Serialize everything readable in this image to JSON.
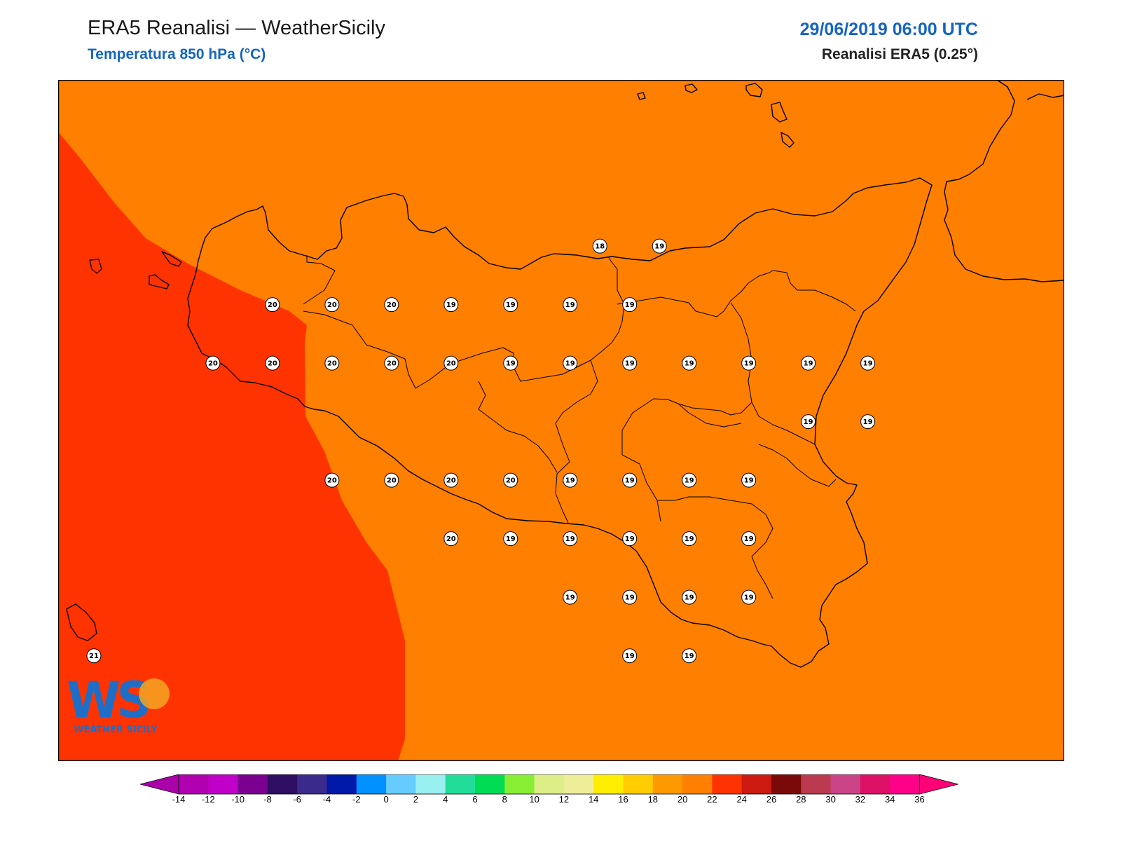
{
  "header": {
    "title": "ERA5 Reanalisi — WeatherSicily",
    "subtitle": "Temperatura 850 hPa (°C)",
    "datetime": "29/06/2019 06:00 UTC",
    "source": "Reanalisi ERA5 (0.25°)"
  },
  "logo": {
    "text": "WS",
    "caption": "WEATHER SICILY"
  },
  "map": {
    "field_colors": {
      "18-20": "#ff7f00",
      "20-22": "#ff3300"
    },
    "stations": [
      {
        "lon": 15.25,
        "lat": 38.25,
        "t": "18"
      },
      {
        "lon": 15.75,
        "lat": 38.25,
        "t": "19"
      },
      {
        "lon": 12.5,
        "lat": 38.0,
        "t": "20"
      },
      {
        "lon": 13.0,
        "lat": 38.0,
        "t": "20"
      },
      {
        "lon": 13.5,
        "lat": 38.0,
        "t": "20"
      },
      {
        "lon": 14.0,
        "lat": 38.0,
        "t": "19"
      },
      {
        "lon": 14.5,
        "lat": 38.0,
        "t": "19"
      },
      {
        "lon": 15.0,
        "lat": 38.0,
        "t": "19"
      },
      {
        "lon": 15.5,
        "lat": 38.0,
        "t": "19"
      },
      {
        "lon": 12.0,
        "lat": 37.75,
        "t": "20"
      },
      {
        "lon": 12.5,
        "lat": 37.75,
        "t": "20"
      },
      {
        "lon": 13.0,
        "lat": 37.75,
        "t": "20"
      },
      {
        "lon": 13.5,
        "lat": 37.75,
        "t": "20"
      },
      {
        "lon": 14.0,
        "lat": 37.75,
        "t": "20"
      },
      {
        "lon": 14.5,
        "lat": 37.75,
        "t": "19"
      },
      {
        "lon": 15.0,
        "lat": 37.75,
        "t": "19"
      },
      {
        "lon": 15.5,
        "lat": 37.75,
        "t": "19"
      },
      {
        "lon": 16.0,
        "lat": 37.75,
        "t": "19"
      },
      {
        "lon": 16.5,
        "lat": 37.75,
        "t": "19"
      },
      {
        "lon": 17.0,
        "lat": 37.75,
        "t": "19"
      },
      {
        "lon": 17.5,
        "lat": 37.75,
        "t": "19"
      },
      {
        "lon": 17.0,
        "lat": 37.5,
        "t": "19"
      },
      {
        "lon": 17.5,
        "lat": 37.5,
        "t": "19"
      },
      {
        "lon": 13.0,
        "lat": 37.25,
        "t": "20"
      },
      {
        "lon": 13.5,
        "lat": 37.25,
        "t": "20"
      },
      {
        "lon": 14.0,
        "lat": 37.25,
        "t": "20"
      },
      {
        "lon": 14.5,
        "lat": 37.25,
        "t": "20"
      },
      {
        "lon": 15.0,
        "lat": 37.25,
        "t": "19"
      },
      {
        "lon": 15.5,
        "lat": 37.25,
        "t": "19"
      },
      {
        "lon": 16.0,
        "lat": 37.25,
        "t": "19"
      },
      {
        "lon": 16.5,
        "lat": 37.25,
        "t": "19"
      },
      {
        "lon": 14.0,
        "lat": 37.0,
        "t": "20"
      },
      {
        "lon": 14.5,
        "lat": 37.0,
        "t": "19"
      },
      {
        "lon": 15.0,
        "lat": 37.0,
        "t": "19"
      },
      {
        "lon": 15.5,
        "lat": 37.0,
        "t": "19"
      },
      {
        "lon": 16.0,
        "lat": 37.0,
        "t": "19"
      },
      {
        "lon": 16.5,
        "lat": 37.0,
        "t": "19"
      },
      {
        "lon": 15.0,
        "lat": 36.75,
        "t": "19"
      },
      {
        "lon": 15.5,
        "lat": 36.75,
        "t": "19"
      },
      {
        "lon": 16.0,
        "lat": 36.75,
        "t": "19"
      },
      {
        "lon": 16.5,
        "lat": 36.75,
        "t": "19"
      },
      {
        "lon": 15.5,
        "lat": 36.5,
        "t": "19"
      },
      {
        "lon": 16.0,
        "lat": 36.5,
        "t": "19"
      },
      {
        "lon": 11.0,
        "lat": 36.5,
        "t": "21"
      }
    ]
  },
  "colorbar": {
    "ticks": [
      "-14",
      "-12",
      "-10",
      "-8",
      "-6",
      "-4",
      "-2",
      "0",
      "2",
      "4",
      "6",
      "8",
      "10",
      "12",
      "14",
      "16",
      "18",
      "20",
      "22",
      "24",
      "26",
      "28",
      "30",
      "32",
      "34",
      "36"
    ],
    "colors": [
      "#b000b0",
      "#c000c8",
      "#7a0090",
      "#2e0e60",
      "#3a2a8c",
      "#0018a8",
      "#0090ff",
      "#66ccff",
      "#99eeee",
      "#22dd99",
      "#00dd55",
      "#88ee33",
      "#ddee88",
      "#eeee99",
      "#ffee00",
      "#ffcc00",
      "#ff9900",
      "#ff7f00",
      "#ff3300",
      "#cc1a10",
      "#7a0a0a",
      "#bb3a50",
      "#cc4488",
      "#dd1166",
      "#ff0088"
    ],
    "under_color": "#aa00aa",
    "over_color": "#ff0077"
  }
}
